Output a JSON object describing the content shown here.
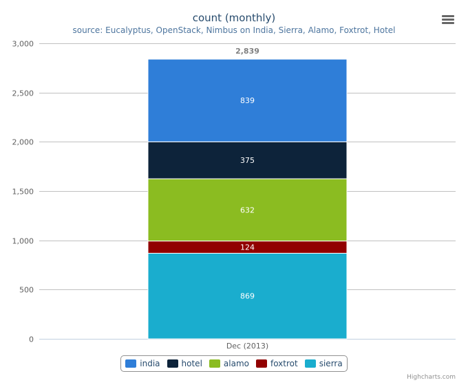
{
  "menu": {
    "icon": "hamburger-menu-icon"
  },
  "credits": "Highcharts.com",
  "chart_data": {
    "type": "bar",
    "stacked": true,
    "title": "count (monthly)",
    "subtitle": "source: Eucalyptus, OpenStack, Nimbus on India, Sierra, Alamo, Foxtrot, Hotel",
    "categories": [
      "Dec (2013)"
    ],
    "ylim": [
      0,
      3000
    ],
    "yticks": [
      0,
      500,
      1000,
      1500,
      2000,
      2500,
      3000
    ],
    "ytick_labels": [
      "0",
      "500",
      "1,000",
      "1,500",
      "2,000",
      "2,500",
      "3,000"
    ],
    "grid": true,
    "legend_position": "bottom-center",
    "total_labels": [
      "2,839"
    ],
    "series": [
      {
        "name": "india",
        "values": [
          839
        ],
        "color": "#2f7ed8"
      },
      {
        "name": "hotel",
        "values": [
          375
        ],
        "color": "#0d233a"
      },
      {
        "name": "alamo",
        "values": [
          632
        ],
        "color": "#8bbc21"
      },
      {
        "name": "foxtrot",
        "values": [
          124
        ],
        "color": "#910000"
      },
      {
        "name": "sierra",
        "values": [
          869
        ],
        "color": "#1aadce"
      }
    ]
  }
}
